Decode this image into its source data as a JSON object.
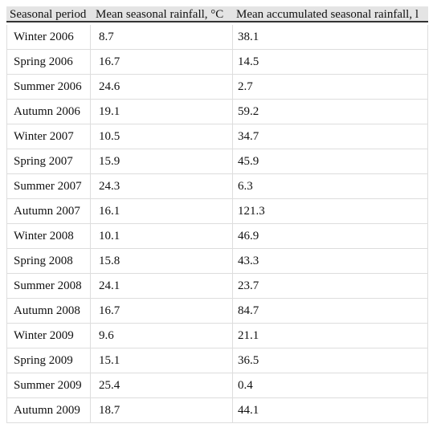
{
  "table": {
    "header": [
      "Seasonal period",
      "Mean seasonal rainfall, °C",
      "Mean accumulated seasonal rainfall, l"
    ],
    "rows": [
      [
        "Winter 2006",
        "8.7",
        "38.1"
      ],
      [
        "Spring 2006",
        "16.7",
        "14.5"
      ],
      [
        "Summer 2006",
        "24.6",
        "2.7"
      ],
      [
        "Autumn 2006",
        "19.1",
        "59.2"
      ],
      [
        "Winter 2007",
        "10.5",
        "34.7"
      ],
      [
        "Spring 2007",
        "15.9",
        "45.9"
      ],
      [
        "Summer 2007",
        "24.3",
        "6.3"
      ],
      [
        "Autumn 2007",
        "16.1",
        "121.3"
      ],
      [
        "Winter 2008",
        "10.1",
        "46.9"
      ],
      [
        "Spring 2008",
        "15.8",
        "43.3"
      ],
      [
        "Summer 2008",
        "24.1",
        "23.7"
      ],
      [
        "Autumn 2008",
        "16.7",
        "84.7"
      ],
      [
        "Winter 2009",
        "9.6",
        "21.1"
      ],
      [
        "Spring 2009",
        "15.1",
        "36.5"
      ],
      [
        "Summer 2009",
        "25.4",
        "0.4"
      ],
      [
        "Autumn 2009",
        "18.7",
        "44.1"
      ]
    ]
  }
}
